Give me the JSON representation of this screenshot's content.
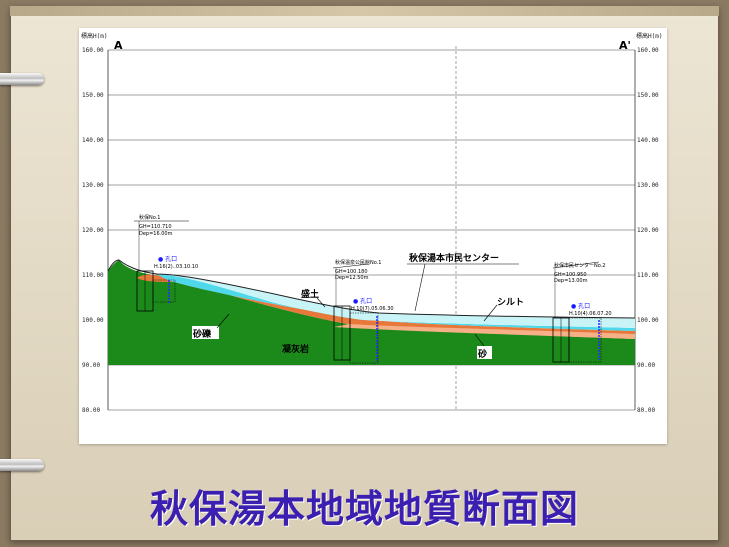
{
  "title": "秋保湯本地域地質断面図",
  "section": {
    "start_label": "A",
    "end_label": "A'"
  },
  "axis": {
    "left_title": "標高H(m)",
    "right_title": "標高H(m)",
    "left_ticks": [
      "160.00",
      "150.00",
      "140.00",
      "130.00",
      "120.00",
      "110.00",
      "100.00",
      "90.00",
      "80.00"
    ],
    "right_ticks": [
      "160.00",
      "150.00",
      "140.00",
      "130.00",
      "120.00",
      "110.00",
      "100.00",
      "90.00",
      "80.00"
    ]
  },
  "layers": {
    "fill": "盛土",
    "gravel": "砂礫",
    "tuff": "凝灰岩",
    "silt": "シルト",
    "sand": "砂",
    "building": "秋保湯本市民センター"
  },
  "boreholes": [
    {
      "id": "bh-1",
      "title": "秋保No.1",
      "mark": "● 孔口",
      "date": "H.16(2)..03.10.10",
      "detail_1": "GH=110.710",
      "detail_2": "Dep=16.00m"
    },
    {
      "id": "bh-2",
      "title": "秋保温泉公民館No.1",
      "mark": "● 孔口",
      "date": "H.10(7).05.06.30",
      "detail_1": "GH=100.180",
      "detail_2": "Dep=12.50m"
    },
    {
      "id": "bh-3",
      "title": "秋保市民センターNo.2",
      "mark": "● 孔口",
      "date": "H.10(4).06.07.20",
      "detail_1": "GH=100.950",
      "detail_2": "Dep=13.00m"
    }
  ],
  "colors": {
    "tuff": "#1b8a1b",
    "gravel": "#e8783a",
    "sand": "#f0a070",
    "silt": "#4fd8ea",
    "fill": "#c8f4f8",
    "caption": "#3b1fb0"
  }
}
